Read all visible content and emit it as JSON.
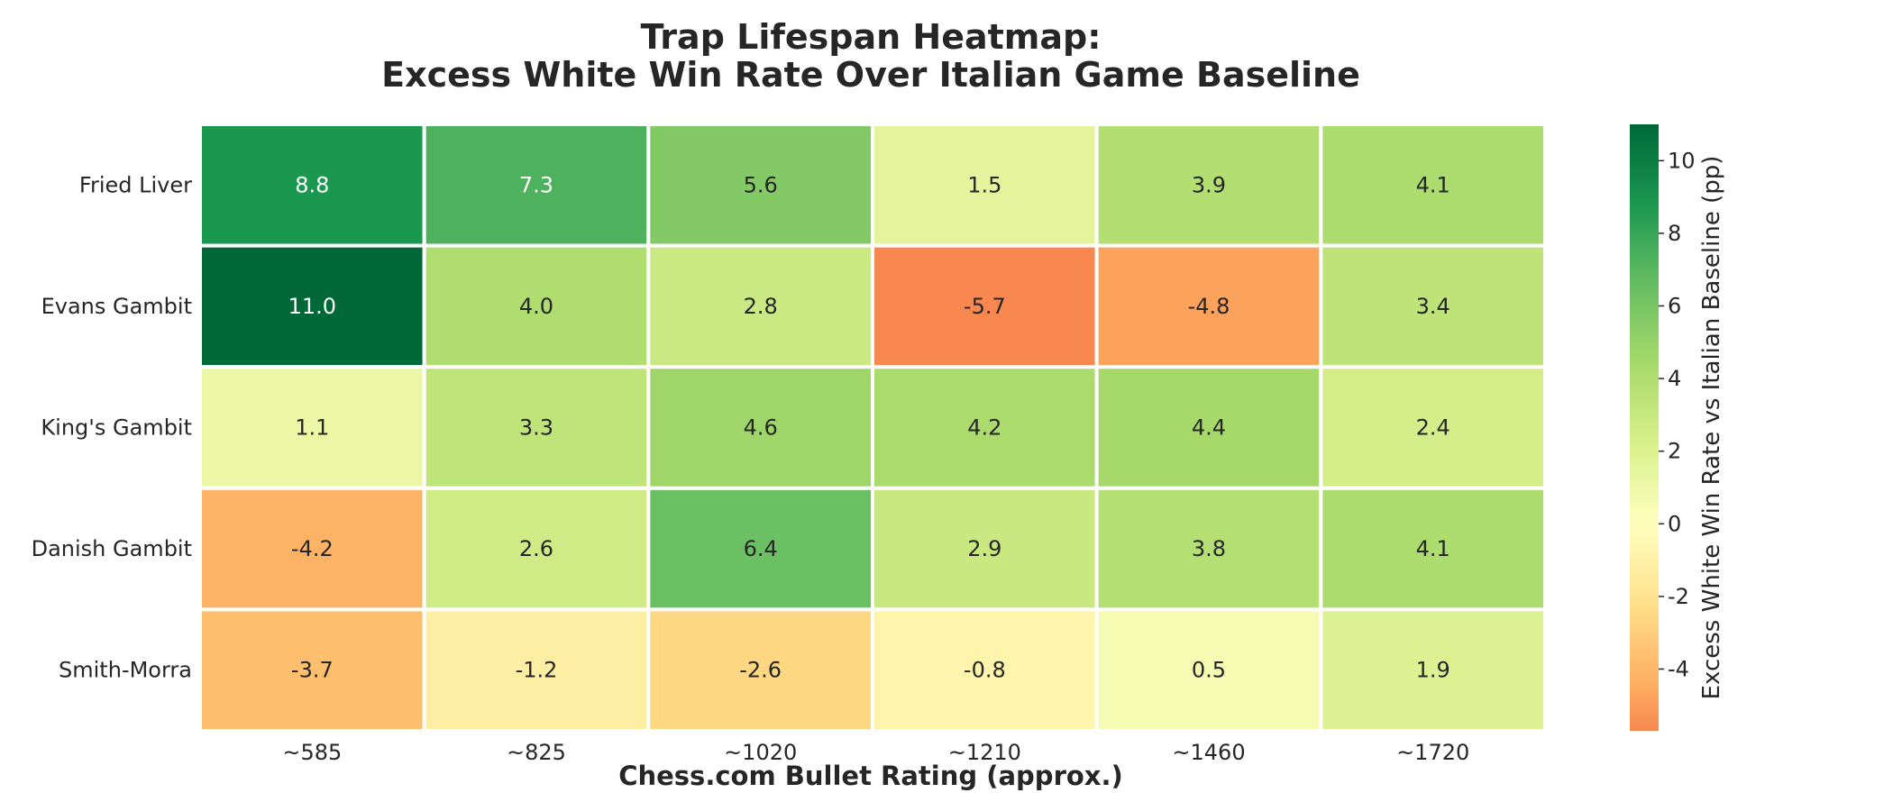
{
  "chart_data": {
    "type": "heatmap",
    "title": [
      "Trap Lifespan Heatmap:",
      "Excess White Win Rate Over Italian Game Baseline"
    ],
    "xlabel": "Chess.com Bullet Rating (approx.)",
    "colorbar_label": "Excess White Win Rate vs Italian Baseline (pp)",
    "columns": [
      "~585",
      "~825",
      "~1020",
      "~1210",
      "~1460",
      "~1720"
    ],
    "rows": [
      "Fried Liver",
      "Evans Gambit",
      "King's Gambit",
      "Danish Gambit",
      "Smith-Morra"
    ],
    "values": [
      [
        8.8,
        7.3,
        5.6,
        1.5,
        3.9,
        4.1
      ],
      [
        11.0,
        4.0,
        2.8,
        -5.7,
        -4.8,
        3.4
      ],
      [
        1.1,
        3.3,
        4.6,
        4.2,
        4.4,
        2.4
      ],
      [
        -4.2,
        2.6,
        6.4,
        2.9,
        3.8,
        4.1
      ],
      [
        -3.7,
        -1.2,
        -2.6,
        -0.8,
        0.5,
        1.9
      ]
    ],
    "cell_labels": [
      [
        "8.8",
        "7.3",
        "5.6",
        "1.5",
        "3.9",
        "4.1"
      ],
      [
        "11.0",
        "4.0",
        "2.8",
        "-5.7",
        "-4.8",
        "3.4"
      ],
      [
        "1.1",
        "3.3",
        "4.6",
        "4.2",
        "4.4",
        "2.4"
      ],
      [
        "-4.2",
        "2.6",
        "6.4",
        "2.9",
        "3.8",
        "4.1"
      ],
      [
        "-3.7",
        "-1.2",
        "-2.6",
        "-0.8",
        "0.5",
        "1.9"
      ]
    ],
    "colormap": "RdYlGn",
    "color_center": 0,
    "color_range": [
      -11.0,
      11.0
    ],
    "colorbar_visible_range": [
      -5.7,
      11.0
    ],
    "colorbar_ticks": [
      -4,
      -2,
      0,
      2,
      4,
      6,
      8,
      10
    ],
    "colorbar_tick_labels": [
      "-4",
      "-2",
      "0",
      "2",
      "4",
      "6",
      "8",
      "10"
    ],
    "grid": false,
    "cell_border_color": "#ffffff"
  }
}
